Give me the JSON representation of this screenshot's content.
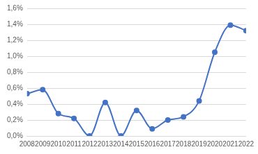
{
  "chart_data": {
    "type": "line",
    "categories": [
      "2008",
      "2009",
      "2010",
      "2011",
      "2012",
      "2013",
      "2014",
      "2015",
      "2016",
      "2017",
      "2018",
      "2019",
      "2020",
      "2021",
      "2022"
    ],
    "values": [
      0.53,
      0.58,
      0.28,
      0.22,
      0.0,
      0.42,
      0.0,
      0.32,
      0.09,
      0.2,
      0.24,
      0.44,
      1.05,
      1.39,
      1.32
    ],
    "color": "#4472c4",
    "marker": "circle",
    "line_style": "solid",
    "ylim": [
      0,
      1.6
    ],
    "yticks": [
      {
        "value": 0,
        "label": "0,0%"
      },
      {
        "value": 0.2,
        "label": "0,2%"
      },
      {
        "value": 0.4,
        "label": "0,4%"
      },
      {
        "value": 0.6,
        "label": "0,6%"
      },
      {
        "value": 0.8,
        "label": "0,8%"
      },
      {
        "value": 1.0,
        "label": "1,0%"
      },
      {
        "value": 1.2,
        "label": "1,2%"
      },
      {
        "value": 1.4,
        "label": "1,4%"
      },
      {
        "value": 1.6,
        "label": "1,6%"
      }
    ],
    "grid": true
  }
}
